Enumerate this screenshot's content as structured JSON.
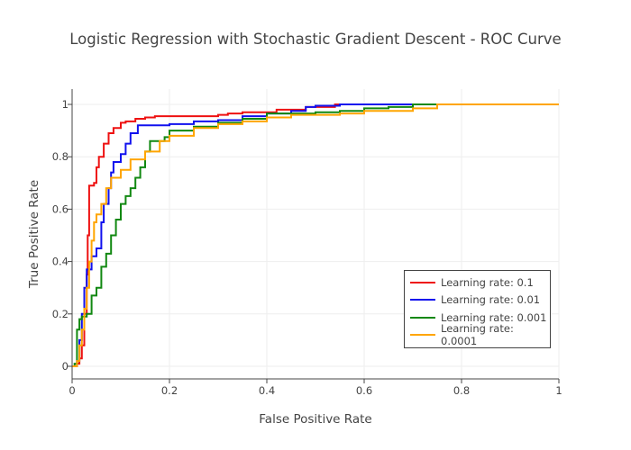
{
  "chart_data": {
    "type": "line",
    "title": "Logistic Regression with Stochastic Gradient Descent - ROC Curve",
    "xlabel": "False Positive Rate",
    "ylabel": "True Positive Rate",
    "xlim": [
      0,
      1
    ],
    "ylim": [
      0,
      1
    ],
    "x_ticks": [
      "0",
      "0.2",
      "0.4",
      "0.6",
      "0.8",
      "1"
    ],
    "y_ticks": [
      "0",
      "0.2",
      "0.4",
      "0.6",
      "0.8",
      "1"
    ],
    "grid": true,
    "legend_position": "bottom-right",
    "series": [
      {
        "name": "Learning rate: 0.1",
        "color": "#ee1111",
        "points": [
          [
            0,
            0
          ],
          [
            0.01,
            0.01
          ],
          [
            0.015,
            0.03
          ],
          [
            0.02,
            0.08
          ],
          [
            0.025,
            0.2
          ],
          [
            0.03,
            0.35
          ],
          [
            0.032,
            0.5
          ],
          [
            0.035,
            0.69
          ],
          [
            0.045,
            0.7
          ],
          [
            0.05,
            0.76
          ],
          [
            0.055,
            0.8
          ],
          [
            0.065,
            0.85
          ],
          [
            0.075,
            0.89
          ],
          [
            0.085,
            0.91
          ],
          [
            0.1,
            0.93
          ],
          [
            0.11,
            0.935
          ],
          [
            0.13,
            0.945
          ],
          [
            0.15,
            0.95
          ],
          [
            0.17,
            0.955
          ],
          [
            0.3,
            0.96
          ],
          [
            0.32,
            0.965
          ],
          [
            0.35,
            0.97
          ],
          [
            0.42,
            0.98
          ],
          [
            0.48,
            0.99
          ],
          [
            0.54,
            1.0
          ],
          [
            1.0,
            1.0
          ]
        ]
      },
      {
        "name": "Learning rate: 0.01",
        "color": "#1111ee",
        "points": [
          [
            0,
            0
          ],
          [
            0.01,
            0.02
          ],
          [
            0.015,
            0.1
          ],
          [
            0.02,
            0.2
          ],
          [
            0.025,
            0.3
          ],
          [
            0.03,
            0.37
          ],
          [
            0.04,
            0.42
          ],
          [
            0.05,
            0.45
          ],
          [
            0.06,
            0.55
          ],
          [
            0.065,
            0.62
          ],
          [
            0.075,
            0.68
          ],
          [
            0.08,
            0.74
          ],
          [
            0.085,
            0.78
          ],
          [
            0.1,
            0.81
          ],
          [
            0.11,
            0.85
          ],
          [
            0.12,
            0.89
          ],
          [
            0.135,
            0.92
          ],
          [
            0.2,
            0.925
          ],
          [
            0.25,
            0.935
          ],
          [
            0.3,
            0.94
          ],
          [
            0.35,
            0.955
          ],
          [
            0.4,
            0.965
          ],
          [
            0.45,
            0.975
          ],
          [
            0.48,
            0.99
          ],
          [
            0.5,
            0.995
          ],
          [
            0.55,
            1.0
          ],
          [
            1.0,
            1.0
          ]
        ]
      },
      {
        "name": "Learning rate: 0.001",
        "color": "#118811",
        "points": [
          [
            0,
            0
          ],
          [
            0.005,
            0.01
          ],
          [
            0.01,
            0.14
          ],
          [
            0.015,
            0.18
          ],
          [
            0.02,
            0.19
          ],
          [
            0.03,
            0.2
          ],
          [
            0.04,
            0.27
          ],
          [
            0.05,
            0.3
          ],
          [
            0.06,
            0.38
          ],
          [
            0.07,
            0.43
          ],
          [
            0.08,
            0.5
          ],
          [
            0.09,
            0.56
          ],
          [
            0.1,
            0.62
          ],
          [
            0.11,
            0.65
          ],
          [
            0.12,
            0.68
          ],
          [
            0.13,
            0.72
          ],
          [
            0.14,
            0.76
          ],
          [
            0.15,
            0.82
          ],
          [
            0.16,
            0.86
          ],
          [
            0.19,
            0.875
          ],
          [
            0.2,
            0.9
          ],
          [
            0.25,
            0.915
          ],
          [
            0.3,
            0.93
          ],
          [
            0.35,
            0.945
          ],
          [
            0.4,
            0.965
          ],
          [
            0.5,
            0.97
          ],
          [
            0.55,
            0.975
          ],
          [
            0.6,
            0.985
          ],
          [
            0.65,
            0.99
          ],
          [
            0.7,
            1.0
          ],
          [
            1.0,
            1.0
          ]
        ]
      },
      {
        "name": "Learning rate: 0.0001",
        "color": "#ffa500",
        "points": [
          [
            0,
            0
          ],
          [
            0.01,
            0.02
          ],
          [
            0.015,
            0.08
          ],
          [
            0.02,
            0.14
          ],
          [
            0.025,
            0.22
          ],
          [
            0.03,
            0.3
          ],
          [
            0.035,
            0.4
          ],
          [
            0.04,
            0.48
          ],
          [
            0.045,
            0.55
          ],
          [
            0.05,
            0.58
          ],
          [
            0.06,
            0.62
          ],
          [
            0.07,
            0.68
          ],
          [
            0.08,
            0.72
          ],
          [
            0.1,
            0.75
          ],
          [
            0.12,
            0.79
          ],
          [
            0.15,
            0.82
          ],
          [
            0.18,
            0.86
          ],
          [
            0.2,
            0.88
          ],
          [
            0.25,
            0.91
          ],
          [
            0.3,
            0.925
          ],
          [
            0.35,
            0.935
          ],
          [
            0.4,
            0.95
          ],
          [
            0.45,
            0.96
          ],
          [
            0.55,
            0.965
          ],
          [
            0.6,
            0.975
          ],
          [
            0.7,
            0.985
          ],
          [
            0.75,
            1.0
          ],
          [
            1.0,
            1.0
          ]
        ]
      }
    ]
  }
}
